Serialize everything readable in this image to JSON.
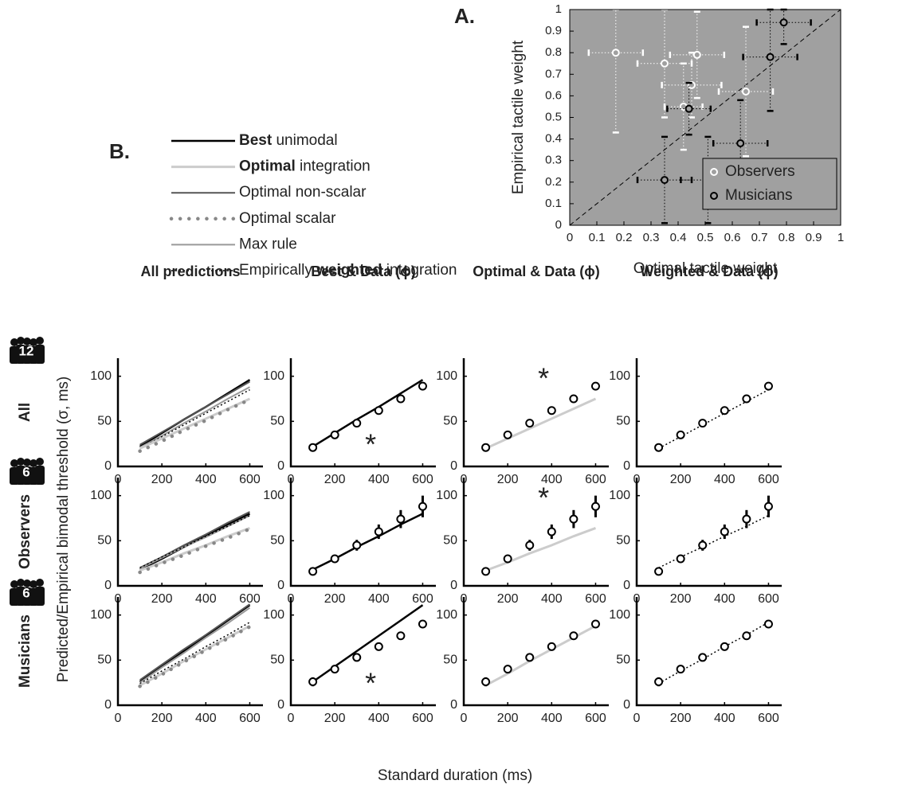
{
  "panel_labels": {
    "a": "A.",
    "b": "B."
  },
  "legend_b": [
    {
      "parts": [
        {
          "text": "Best",
          "bold": true
        },
        {
          "text": " unimodal"
        }
      ],
      "color": "#000",
      "width": 2.5
    },
    {
      "parts": [
        {
          "text": "Optimal",
          "bold": true
        },
        {
          "text": " integration"
        }
      ],
      "color": "#ccc",
      "width": 3
    },
    {
      "parts": [
        {
          "text": "Optimal non-scalar"
        }
      ],
      "color": "#555",
      "width": 2
    },
    {
      "parts": [
        {
          "text": "Optimal scalar"
        }
      ],
      "color": "#888",
      "width": 3,
      "dash": "scalar"
    },
    {
      "parts": [
        {
          "text": "Max rule"
        }
      ],
      "color": "#999",
      "width": 2
    },
    {
      "parts": [
        {
          "text": "Empirically "
        },
        {
          "text": "weighted",
          "bold": true
        },
        {
          "text": " integration"
        }
      ],
      "color": "#000",
      "width": 1.5,
      "dash": "dotted"
    }
  ],
  "grid": {
    "column_titles": [
      "All predictions",
      "Best & Data (ϕ)",
      "Optimal & Data (ϕ)",
      "Weighted & Data (ϕ)"
    ],
    "row_labels": [
      "All",
      "Observers",
      "Musicians"
    ],
    "row_counts": [
      "12",
      "6",
      "6"
    ],
    "ylabel": "Predicted/Empirical bimodal threshold (σ, ms)",
    "xlabel": "Standard duration (ms)"
  },
  "chart_data": [
    {
      "type": "scatter",
      "xlabel": "Optimal tactile weight",
      "ylabel": "Empirical tactile weight",
      "xlim": [
        0,
        1
      ],
      "ylim": [
        0,
        1
      ],
      "xticks": [
        0,
        0.1,
        0.2,
        0.3,
        0.4,
        0.5,
        0.6,
        0.7,
        0.8,
        0.9,
        1
      ],
      "yticks": [
        0,
        0.1,
        0.2,
        0.3,
        0.4,
        0.5,
        0.6,
        0.7,
        0.8,
        0.9,
        1
      ],
      "background": "#a0a0a0",
      "identity_line": true,
      "legend": "lower right",
      "series": [
        {
          "name": "Observers",
          "color": "#fff",
          "x": [
            0.17,
            0.35,
            0.47,
            0.45,
            0.42,
            0.65
          ],
          "y": [
            0.8,
            0.75,
            0.79,
            0.65,
            0.55,
            0.62
          ],
          "x_err": [
            0.1,
            0.1,
            0.1,
            0.11,
            0.07,
            0.1
          ],
          "y_err": [
            0.37,
            0.25,
            0.2,
            0.15,
            0.2,
            0.3
          ]
        },
        {
          "name": "Musicians",
          "color": "#000",
          "x": [
            0.79,
            0.74,
            0.44,
            0.63,
            0.35,
            0.51
          ],
          "y": [
            0.94,
            0.78,
            0.54,
            0.38,
            0.21,
            0.21
          ],
          "x_err": [
            0.1,
            0.1,
            0.08,
            0.1,
            0.1,
            0.1
          ],
          "y_err": [
            0.1,
            0.25,
            0.12,
            0.2,
            0.2,
            0.2
          ]
        }
      ]
    },
    {
      "type": "line",
      "x": [
        100,
        200,
        300,
        400,
        500,
        600
      ],
      "xlim": [
        0,
        660
      ],
      "ylim": [
        0,
        120
      ],
      "xticks": [
        0,
        200,
        400,
        600
      ],
      "yticks": [
        0,
        50,
        100
      ],
      "series": [
        {
          "color": "#000",
          "width": 2.5,
          "values": [
            22,
            37,
            52,
            66,
            81,
            96
          ]
        },
        {
          "color": "#555",
          "width": 2,
          "values": [
            24,
            38,
            52,
            66,
            80,
            94
          ]
        },
        {
          "color": "#999",
          "width": 2,
          "values": [
            21,
            34,
            48,
            61,
            75,
            88
          ]
        },
        {
          "color": "#000",
          "width": 1.5,
          "dash": "dotted",
          "values": [
            20,
            33,
            46,
            59,
            72,
            85
          ]
        },
        {
          "color": "#ccc",
          "width": 3,
          "values": [
            20,
            31,
            42,
            53,
            64,
            75
          ]
        },
        {
          "color": "#888",
          "width": 3,
          "dash": "scalar",
          "values": [
            17,
            28,
            40,
            51,
            63,
            74
          ]
        }
      ]
    },
    {
      "type": "line",
      "x": [
        100,
        200,
        300,
        400,
        500,
        600
      ],
      "xlim": [
        0,
        660
      ],
      "ylim": [
        0,
        120
      ],
      "xticks": [
        0,
        200,
        400,
        600
      ],
      "yticks": [
        0,
        50,
        100
      ],
      "annotation": "*",
      "series": [
        {
          "color": "#000",
          "width": 2.5,
          "values": [
            22,
            37,
            52,
            66,
            81,
            96
          ]
        },
        {
          "color": "#000",
          "marker": "circle",
          "values": [
            21,
            35,
            48,
            62,
            75,
            89
          ],
          "errors": [
            2,
            3,
            3,
            3,
            4,
            4
          ]
        }
      ]
    },
    {
      "type": "line",
      "x": [
        100,
        200,
        300,
        400,
        500,
        600
      ],
      "xlim": [
        0,
        660
      ],
      "ylim": [
        0,
        120
      ],
      "xticks": [
        0,
        200,
        400,
        600
      ],
      "yticks": [
        0,
        50,
        100
      ],
      "annotation": "*",
      "series": [
        {
          "color": "#ccc",
          "width": 3,
          "values": [
            20,
            31,
            42,
            53,
            64,
            75
          ]
        },
        {
          "color": "#000",
          "marker": "circle",
          "values": [
            21,
            35,
            48,
            62,
            75,
            89
          ],
          "errors": [
            2,
            3,
            3,
            3,
            4,
            4
          ]
        }
      ]
    },
    {
      "type": "line",
      "x": [
        100,
        200,
        300,
        400,
        500,
        600
      ],
      "xlim": [
        0,
        660
      ],
      "ylim": [
        0,
        120
      ],
      "xticks": [
        0,
        200,
        400,
        600
      ],
      "yticks": [
        0,
        50,
        100
      ],
      "series": [
        {
          "color": "#000",
          "width": 1.5,
          "dash": "dotted",
          "values": [
            20,
            33,
            46,
            59,
            72,
            85
          ]
        },
        {
          "color": "#000",
          "marker": "circle",
          "values": [
            21,
            35,
            48,
            62,
            75,
            89
          ],
          "errors": [
            2,
            3,
            3,
            3,
            4,
            4
          ]
        }
      ]
    },
    {
      "type": "line",
      "x": [
        100,
        200,
        300,
        400,
        500,
        600
      ],
      "xlim": [
        0,
        660
      ],
      "ylim": [
        0,
        120
      ],
      "xticks": [
        0,
        200,
        400,
        600
      ],
      "yticks": [
        0,
        50,
        100
      ],
      "series": [
        {
          "color": "#000",
          "width": 2.5,
          "values": [
            18,
            30,
            43,
            55,
            68,
            80
          ]
        },
        {
          "color": "#555",
          "width": 2,
          "values": [
            20,
            32,
            45,
            57,
            70,
            82
          ]
        },
        {
          "color": "#999",
          "width": 2,
          "values": [
            19,
            31,
            43,
            54,
            66,
            78
          ]
        },
        {
          "color": "#000",
          "width": 1.5,
          "dash": "dotted",
          "values": [
            20,
            32,
            43,
            55,
            66,
            78
          ]
        },
        {
          "color": "#ccc",
          "width": 3,
          "values": [
            17,
            26,
            36,
            45,
            55,
            64
          ]
        },
        {
          "color": "#888",
          "width": 3,
          "dash": "scalar",
          "values": [
            15,
            25,
            34,
            44,
            53,
            63
          ]
        }
      ]
    },
    {
      "type": "line",
      "x": [
        100,
        200,
        300,
        400,
        500,
        600
      ],
      "xlim": [
        0,
        660
      ],
      "ylim": [
        0,
        120
      ],
      "xticks": [
        0,
        200,
        400,
        600
      ],
      "yticks": [
        0,
        50,
        100
      ],
      "series": [
        {
          "color": "#000",
          "width": 2.5,
          "values": [
            18,
            30,
            43,
            55,
            68,
            80
          ]
        },
        {
          "color": "#000",
          "marker": "circle",
          "values": [
            16,
            30,
            45,
            60,
            74,
            88
          ],
          "errors": [
            2,
            4,
            6,
            8,
            10,
            12
          ]
        }
      ]
    },
    {
      "type": "line",
      "x": [
        100,
        200,
        300,
        400,
        500,
        600
      ],
      "xlim": [
        0,
        660
      ],
      "ylim": [
        0,
        120
      ],
      "xticks": [
        0,
        200,
        400,
        600
      ],
      "yticks": [
        0,
        50,
        100
      ],
      "annotation": "*",
      "series": [
        {
          "color": "#ccc",
          "width": 3,
          "values": [
            17,
            26,
            36,
            45,
            55,
            64
          ]
        },
        {
          "color": "#000",
          "marker": "circle",
          "values": [
            16,
            30,
            45,
            60,
            74,
            88
          ],
          "errors": [
            2,
            4,
            6,
            8,
            10,
            12
          ]
        }
      ]
    },
    {
      "type": "line",
      "x": [
        100,
        200,
        300,
        400,
        500,
        600
      ],
      "xlim": [
        0,
        660
      ],
      "ylim": [
        0,
        120
      ],
      "xticks": [
        0,
        200,
        400,
        600
      ],
      "yticks": [
        0,
        50,
        100
      ],
      "series": [
        {
          "color": "#000",
          "width": 1.5,
          "dash": "dotted",
          "values": [
            20,
            32,
            43,
            55,
            66,
            78
          ]
        },
        {
          "color": "#000",
          "marker": "circle",
          "values": [
            16,
            30,
            45,
            60,
            74,
            88
          ],
          "errors": [
            2,
            4,
            6,
            8,
            10,
            12
          ]
        }
      ]
    },
    {
      "type": "line",
      "x": [
        100,
        200,
        300,
        400,
        500,
        600
      ],
      "xlim": [
        0,
        660
      ],
      "ylim": [
        0,
        120
      ],
      "xticks": [
        0,
        200,
        400,
        600
      ],
      "yticks": [
        0,
        50,
        100
      ],
      "series": [
        {
          "color": "#000",
          "width": 2.5,
          "values": [
            26,
            43,
            60,
            77,
            94,
            111
          ]
        },
        {
          "color": "#555",
          "width": 2,
          "values": [
            28,
            45,
            62,
            78,
            95,
            112
          ]
        },
        {
          "color": "#999",
          "width": 2,
          "values": [
            25,
            42,
            58,
            75,
            91,
            108
          ]
        },
        {
          "color": "#000",
          "width": 1.5,
          "dash": "dotted",
          "values": [
            24,
            38,
            51,
            65,
            78,
            92
          ]
        },
        {
          "color": "#ccc",
          "width": 3,
          "values": [
            22,
            35,
            49,
            62,
            75,
            88
          ]
        },
        {
          "color": "#888",
          "width": 3,
          "dash": "scalar",
          "values": [
            21,
            34,
            48,
            61,
            74,
            87
          ]
        }
      ]
    },
    {
      "type": "line",
      "x": [
        100,
        200,
        300,
        400,
        500,
        600
      ],
      "xlim": [
        0,
        660
      ],
      "ylim": [
        0,
        120
      ],
      "xticks": [
        0,
        200,
        400,
        600
      ],
      "yticks": [
        0,
        50,
        100
      ],
      "annotation": "*",
      "series": [
        {
          "color": "#000",
          "width": 2.5,
          "values": [
            26,
            43,
            60,
            77,
            94,
            111
          ]
        },
        {
          "color": "#000",
          "marker": "circle",
          "values": [
            26,
            40,
            53,
            65,
            77,
            90
          ],
          "errors": [
            5,
            4,
            4,
            3,
            3,
            3
          ]
        }
      ]
    },
    {
      "type": "line",
      "x": [
        100,
        200,
        300,
        400,
        500,
        600
      ],
      "xlim": [
        0,
        660
      ],
      "ylim": [
        0,
        120
      ],
      "xticks": [
        0,
        200,
        400,
        600
      ],
      "yticks": [
        0,
        50,
        100
      ],
      "series": [
        {
          "color": "#ccc",
          "width": 3,
          "values": [
            22,
            35,
            49,
            62,
            75,
            88
          ]
        },
        {
          "color": "#000",
          "marker": "circle",
          "values": [
            26,
            40,
            53,
            65,
            77,
            90
          ],
          "errors": [
            5,
            4,
            4,
            3,
            3,
            3
          ]
        }
      ]
    },
    {
      "type": "line",
      "x": [
        100,
        200,
        300,
        400,
        500,
        600
      ],
      "xlim": [
        0,
        660
      ],
      "ylim": [
        0,
        120
      ],
      "xticks": [
        0,
        200,
        400,
        600
      ],
      "yticks": [
        0,
        50,
        100
      ],
      "series": [
        {
          "color": "#000",
          "width": 1.5,
          "dash": "dotted",
          "values": [
            24,
            38,
            51,
            65,
            78,
            92
          ]
        },
        {
          "color": "#000",
          "marker": "circle",
          "values": [
            26,
            40,
            53,
            65,
            77,
            90
          ],
          "errors": [
            5,
            4,
            4,
            3,
            3,
            3
          ]
        }
      ]
    }
  ]
}
